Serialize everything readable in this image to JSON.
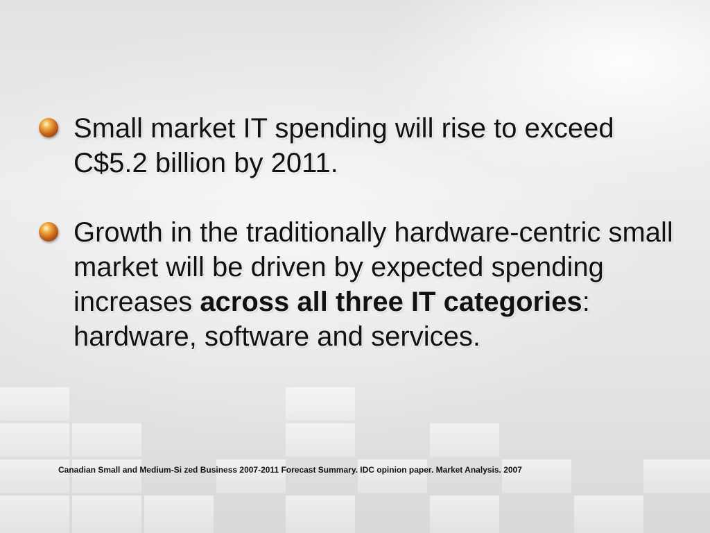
{
  "slide": {
    "bullets": [
      {
        "text": "Small market IT spending will rise to exceed C$5.2 billion by 2011."
      },
      {
        "text_before": "Growth in the traditionally hardware-centric small market will be driven by expected spending increases ",
        "text_bold": "across all three IT categories",
        "text_after": ": hardware, software and services."
      }
    ],
    "citation": "Canadian Small and Medium-Si zed Business 2007-2011 Forecast Summary.  IDC opinion paper. Market Analysis. 2007"
  }
}
